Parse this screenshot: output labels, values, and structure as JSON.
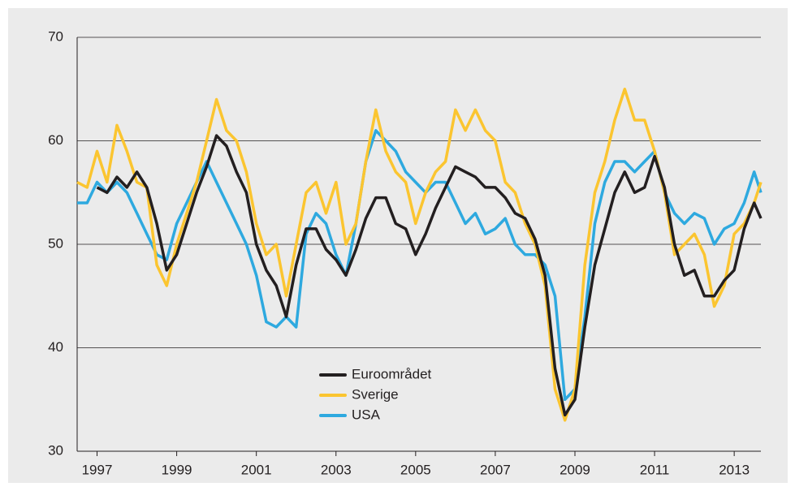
{
  "chart_data": {
    "type": "line",
    "x": [
      1996.5,
      1996.75,
      1997,
      1997.25,
      1997.5,
      1997.75,
      1998,
      1998.25,
      1998.5,
      1998.75,
      1999,
      1999.25,
      1999.5,
      1999.75,
      2000,
      2000.25,
      2000.5,
      2000.75,
      2001,
      2001.25,
      2001.5,
      2001.75,
      2002,
      2002.25,
      2002.5,
      2002.75,
      2003,
      2003.25,
      2003.5,
      2003.75,
      2004,
      2004.25,
      2004.5,
      2004.75,
      2005,
      2005.25,
      2005.5,
      2005.75,
      2006,
      2006.25,
      2006.5,
      2006.75,
      2007,
      2007.25,
      2007.5,
      2007.75,
      2008,
      2008.25,
      2008.5,
      2008.75,
      2009,
      2009.25,
      2009.5,
      2009.75,
      2010,
      2010.25,
      2010.5,
      2010.75,
      2011,
      2011.25,
      2011.5,
      2011.75,
      2012,
      2012.25,
      2012.5,
      2012.75,
      2013,
      2013.25,
      2013.5,
      2013.67
    ],
    "series": [
      {
        "name": "Euroområdet",
        "color": "#231f20",
        "values": [
          null,
          null,
          55.5,
          55,
          56.5,
          55.5,
          57,
          55.5,
          52,
          47.5,
          49,
          52,
          55,
          57.5,
          60.5,
          59.5,
          57,
          55,
          50,
          47.5,
          46,
          43,
          48,
          51.5,
          51.5,
          49.5,
          48.5,
          47,
          49.5,
          52.5,
          54.5,
          54.5,
          52,
          51.5,
          49,
          51,
          53.5,
          55.5,
          57.5,
          57,
          56.5,
          55.5,
          55.5,
          54.5,
          53,
          52.5,
          50.5,
          47,
          38,
          33.5,
          35,
          42,
          48,
          51.5,
          55,
          57,
          55,
          55.5,
          58.5,
          55.5,
          50,
          47,
          47.5,
          45,
          45,
          46.5,
          47.5,
          51.5,
          54,
          52.5
        ]
      },
      {
        "name": "Sverige",
        "color": "#fbc530",
        "values": [
          56,
          55.5,
          59,
          56,
          61.5,
          59,
          56,
          55.5,
          48,
          46,
          50,
          53,
          56,
          60,
          64,
          61,
          60,
          57,
          52,
          49,
          50,
          45,
          50,
          55,
          56,
          53,
          56,
          50,
          52,
          58,
          63,
          59,
          57,
          56,
          52,
          55,
          57,
          58,
          63,
          61,
          63,
          61,
          60,
          56,
          55,
          52,
          50,
          46,
          36,
          33,
          36,
          48,
          55,
          58,
          62,
          65,
          62,
          62,
          59,
          55,
          49,
          50,
          51,
          49,
          44,
          46,
          51,
          52,
          54,
          56
        ]
      },
      {
        "name": "USA",
        "color": "#2ea9df",
        "values": [
          54,
          54,
          56,
          55,
          56,
          55,
          53,
          51,
          49,
          48.5,
          52,
          54,
          56,
          58,
          56,
          54,
          52,
          50,
          47,
          42.5,
          42,
          43,
          42,
          51,
          53,
          52,
          49,
          47,
          52,
          58,
          61,
          60,
          59,
          57,
          56,
          55,
          56,
          56,
          54,
          52,
          53,
          51,
          51.5,
          52.5,
          50,
          49,
          49,
          48,
          45,
          35,
          36,
          43,
          52,
          56,
          58,
          58,
          57,
          58,
          59,
          55,
          53,
          52,
          53,
          52.5,
          50,
          51.5,
          52,
          54,
          57,
          55
        ]
      }
    ],
    "xlim": [
      1996.5,
      2013.67
    ],
    "xticks": [
      1997,
      1999,
      2001,
      2003,
      2005,
      2007,
      2009,
      2011,
      2013
    ],
    "ylim": [
      30,
      70
    ],
    "yticks": [
      30,
      40,
      50,
      60,
      70
    ],
    "grid": true,
    "legend": "bottom-center"
  }
}
